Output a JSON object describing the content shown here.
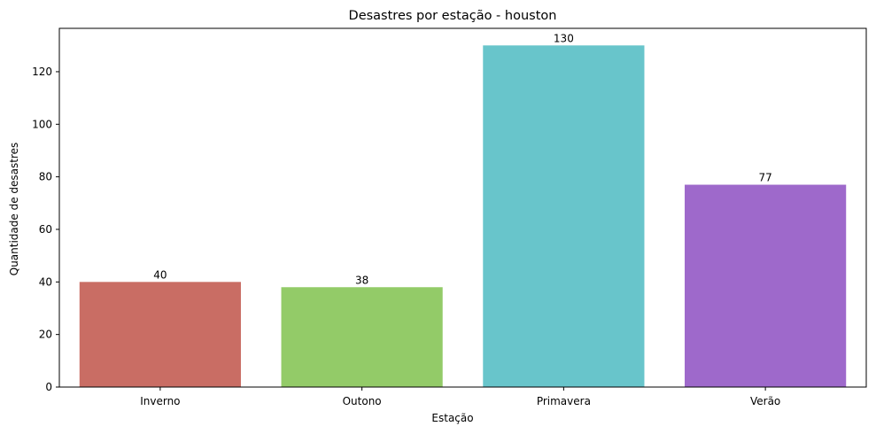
{
  "chart_data": {
    "type": "bar",
    "title": "Desastres por estação - houston",
    "xlabel": "Estação",
    "ylabel": "Quantidade de desastres",
    "categories": [
      "Inverno",
      "Outono",
      "Primavera",
      "Verão"
    ],
    "values": [
      40,
      38,
      130,
      77
    ],
    "data_labels": [
      "40",
      "38",
      "130",
      "77"
    ],
    "colors": [
      "#c96d64",
      "#93cb68",
      "#68c5cb",
      "#9e69cb"
    ],
    "ylim": [
      0,
      136.5
    ],
    "yticks": [
      0,
      20,
      40,
      60,
      80,
      100,
      120
    ],
    "grid": false,
    "legend": "none"
  }
}
